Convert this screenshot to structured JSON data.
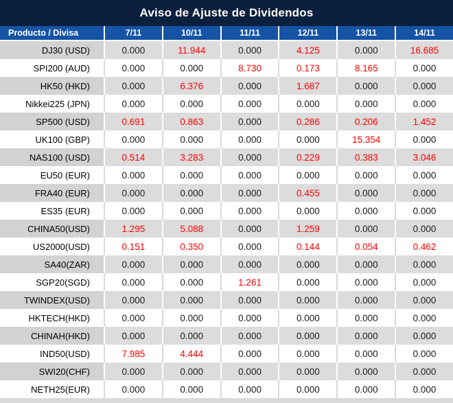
{
  "title": "Aviso de Ajuste de Dividendos",
  "colors": {
    "title_bar_bg": "#0d1f3e",
    "header_bg": "#1553a5",
    "header_text": "#ffffff",
    "row_gray_product_bg": "#d2d2d2",
    "row_gray_value_bg": "#dcdcdc",
    "row_white_bg": "#ffffff",
    "value_text": "#1a1a1a",
    "highlight_red": "#fe0000",
    "separator_on_white": "#d9d9d9",
    "separator_on_gray": "#ffffff"
  },
  "chart_data": {
    "type": "table",
    "title": "Aviso de Ajuste de Dividendos",
    "product_column_header": "Producto / Divisa",
    "date_columns": [
      "7/11",
      "10/11",
      "11/11",
      "12/11",
      "13/11",
      "14/11"
    ],
    "rows": [
      {
        "product": "DJ30 (USD)",
        "values": [
          "0.000",
          "11.944",
          "0.000",
          "4.125",
          "0.000",
          "16.685"
        ],
        "red_flags": [
          false,
          true,
          false,
          true,
          false,
          true
        ]
      },
      {
        "product": "SPI200 (AUD)",
        "values": [
          "0.000",
          "0.000",
          "8.730",
          "0.173",
          "8.165",
          "0.000"
        ],
        "red_flags": [
          false,
          false,
          true,
          true,
          true,
          false
        ]
      },
      {
        "product": "HK50 (HKD)",
        "values": [
          "0.000",
          "6.376",
          "0.000",
          "1.687",
          "0.000",
          "0.000"
        ],
        "red_flags": [
          false,
          true,
          false,
          true,
          false,
          false
        ]
      },
      {
        "product": "Nikkei225 (JPN)",
        "values": [
          "0.000",
          "0.000",
          "0.000",
          "0.000",
          "0.000",
          "0.000"
        ],
        "red_flags": [
          false,
          false,
          false,
          false,
          false,
          false
        ]
      },
      {
        "product": "SP500 (USD)",
        "values": [
          "0.691",
          "0.863",
          "0.000",
          "0.286",
          "0.206",
          "1.452"
        ],
        "red_flags": [
          true,
          true,
          false,
          true,
          true,
          true
        ]
      },
      {
        "product": "UK100 (GBP)",
        "values": [
          "0.000",
          "0.000",
          "0.000",
          "0.000",
          "15.354",
          "0.000"
        ],
        "red_flags": [
          false,
          false,
          false,
          false,
          true,
          false
        ]
      },
      {
        "product": "NAS100 (USD)",
        "values": [
          "0.514",
          "3.283",
          "0.000",
          "0.229",
          "0.383",
          "3.046"
        ],
        "red_flags": [
          true,
          true,
          false,
          true,
          true,
          true
        ]
      },
      {
        "product": "EU50 (EUR)",
        "values": [
          "0.000",
          "0.000",
          "0.000",
          "0.000",
          "0.000",
          "0.000"
        ],
        "red_flags": [
          false,
          false,
          false,
          false,
          false,
          false
        ]
      },
      {
        "product": "FRA40 (EUR)",
        "values": [
          "0.000",
          "0.000",
          "0.000",
          "0.455",
          "0.000",
          "0.000"
        ],
        "red_flags": [
          false,
          false,
          false,
          true,
          false,
          false
        ]
      },
      {
        "product": "ES35 (EUR)",
        "values": [
          "0.000",
          "0.000",
          "0.000",
          "0.000",
          "0.000",
          "0.000"
        ],
        "red_flags": [
          false,
          false,
          false,
          false,
          false,
          false
        ]
      },
      {
        "product": "CHINA50(USD)",
        "values": [
          "1.295",
          "5.088",
          "0.000",
          "1.259",
          "0.000",
          "0.000"
        ],
        "red_flags": [
          true,
          true,
          false,
          true,
          false,
          false
        ]
      },
      {
        "product": "US2000(USD)",
        "values": [
          "0.151",
          "0.350",
          "0.000",
          "0.144",
          "0.054",
          "0.462"
        ],
        "red_flags": [
          true,
          true,
          false,
          true,
          true,
          true
        ]
      },
      {
        "product": "SA40(ZAR)",
        "values": [
          "0.000",
          "0.000",
          "0.000",
          "0.000",
          "0.000",
          "0.000"
        ],
        "red_flags": [
          false,
          false,
          false,
          false,
          false,
          false
        ]
      },
      {
        "product": "SGP20(SGD)",
        "values": [
          "0.000",
          "0.000",
          "1.261",
          "0.000",
          "0.000",
          "0.000"
        ],
        "red_flags": [
          false,
          false,
          true,
          false,
          false,
          false
        ]
      },
      {
        "product": "TWINDEX(USD)",
        "values": [
          "0.000",
          "0.000",
          "0.000",
          "0.000",
          "0.000",
          "0.000"
        ],
        "red_flags": [
          false,
          false,
          false,
          false,
          false,
          false
        ]
      },
      {
        "product": "HKTECH(HKD)",
        "values": [
          "0.000",
          "0.000",
          "0.000",
          "0.000",
          "0.000",
          "0.000"
        ],
        "red_flags": [
          false,
          false,
          false,
          false,
          false,
          false
        ]
      },
      {
        "product": "CHINAH(HKD)",
        "values": [
          "0.000",
          "0.000",
          "0.000",
          "0.000",
          "0.000",
          "0.000"
        ],
        "red_flags": [
          false,
          false,
          false,
          false,
          false,
          false
        ]
      },
      {
        "product": "IND50(USD)",
        "values": [
          "7.985",
          "4.444",
          "0.000",
          "0.000",
          "0.000",
          "0.000"
        ],
        "red_flags": [
          true,
          true,
          false,
          false,
          false,
          false
        ]
      },
      {
        "product": "SWI20(CHF)",
        "values": [
          "0.000",
          "0.000",
          "0.000",
          "0.000",
          "0.000",
          "0.000"
        ],
        "red_flags": [
          false,
          false,
          false,
          false,
          false,
          false
        ]
      },
      {
        "product": "NETH25(EUR)",
        "values": [
          "0.000",
          "0.000",
          "0.000",
          "0.000",
          "0.000",
          "0.000"
        ],
        "red_flags": [
          false,
          false,
          false,
          false,
          false,
          false
        ]
      }
    ]
  }
}
